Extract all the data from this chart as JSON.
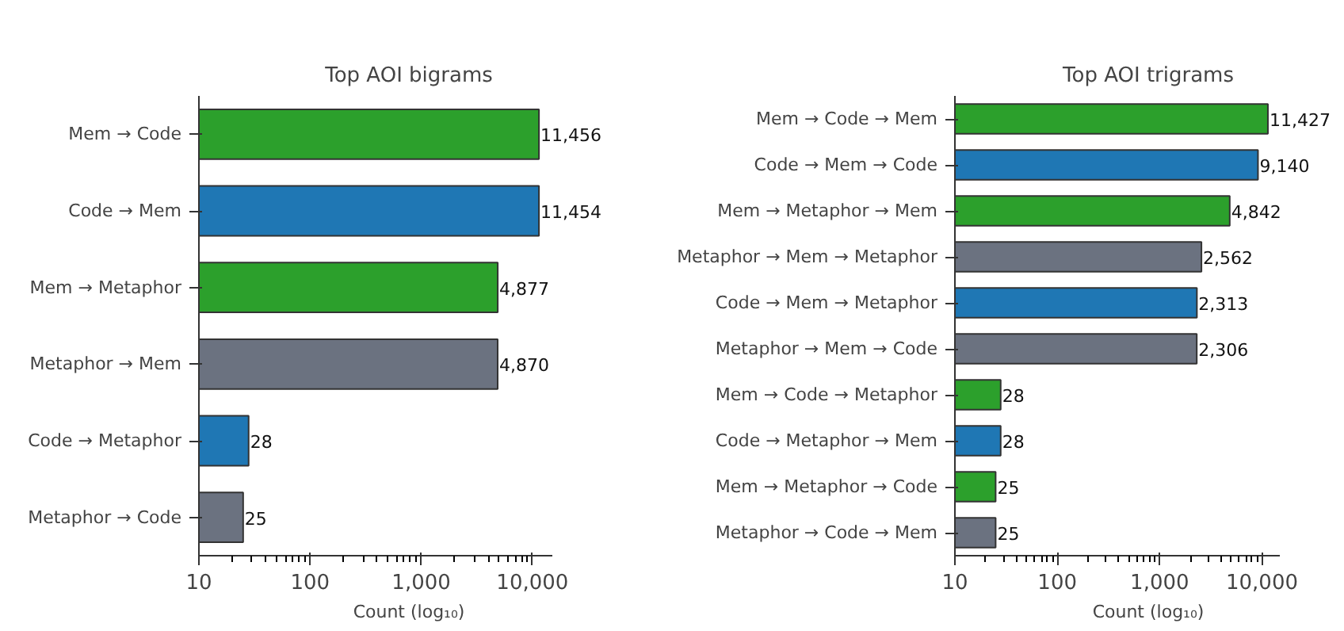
{
  "chart_data": [
    {
      "type": "bar",
      "orientation": "horizontal",
      "title": "Top AOI bigrams",
      "xlabel": "Count (log₁₀)",
      "log": "x",
      "grid": false,
      "categories": [
        "Mem → Code",
        "Code → Mem",
        "Mem → Metaphor",
        "Metaphor → Mem",
        "Code → Metaphor",
        "Metaphor → Code"
      ],
      "values": [
        11456,
        11454,
        4877,
        4870,
        28,
        25
      ],
      "value_labels": [
        "11,456",
        "11,454",
        "4,877",
        "4,870",
        "28",
        "25"
      ],
      "colors": [
        "#2ca02c",
        "#1f77b4",
        "#2ca02c",
        "#6b7280",
        "#1f77b4",
        "#6b7280"
      ],
      "xlim": [
        10,
        15000
      ],
      "xticks": [
        {
          "value": 10,
          "label": "10"
        },
        {
          "value": 100,
          "label": "100"
        },
        {
          "value": 1000,
          "label": "1,000"
        },
        {
          "value": 10000,
          "label": "10,000"
        }
      ]
    },
    {
      "type": "bar",
      "orientation": "horizontal",
      "title": "Top AOI trigrams",
      "xlabel": "Count (log₁₀)",
      "log": "x",
      "grid": false,
      "categories": [
        "Mem → Code → Mem",
        "Code → Mem → Code",
        "Mem → Metaphor → Mem",
        "Metaphor → Mem → Metaphor",
        "Code → Mem → Metaphor",
        "Metaphor → Mem → Code",
        "Mem → Code → Metaphor",
        "Code → Metaphor → Mem",
        "Mem → Metaphor → Code",
        "Metaphor → Code → Mem"
      ],
      "values": [
        11427,
        9140,
        4842,
        2562,
        2313,
        2306,
        28,
        28,
        25,
        25
      ],
      "value_labels": [
        "11,427",
        "9,140",
        "4,842",
        "2,562",
        "2,313",
        "2,306",
        "28",
        "28",
        "25",
        "25"
      ],
      "colors": [
        "#2ca02c",
        "#1f77b4",
        "#2ca02c",
        "#6b7280",
        "#1f77b4",
        "#6b7280",
        "#2ca02c",
        "#1f77b4",
        "#2ca02c",
        "#6b7280"
      ],
      "xlim": [
        10,
        15000
      ],
      "xticks": [
        {
          "value": 10,
          "label": "10"
        },
        {
          "value": 100,
          "label": "100"
        },
        {
          "value": 1000,
          "label": "1,000"
        },
        {
          "value": 10000,
          "label": "10,000"
        }
      ]
    }
  ]
}
